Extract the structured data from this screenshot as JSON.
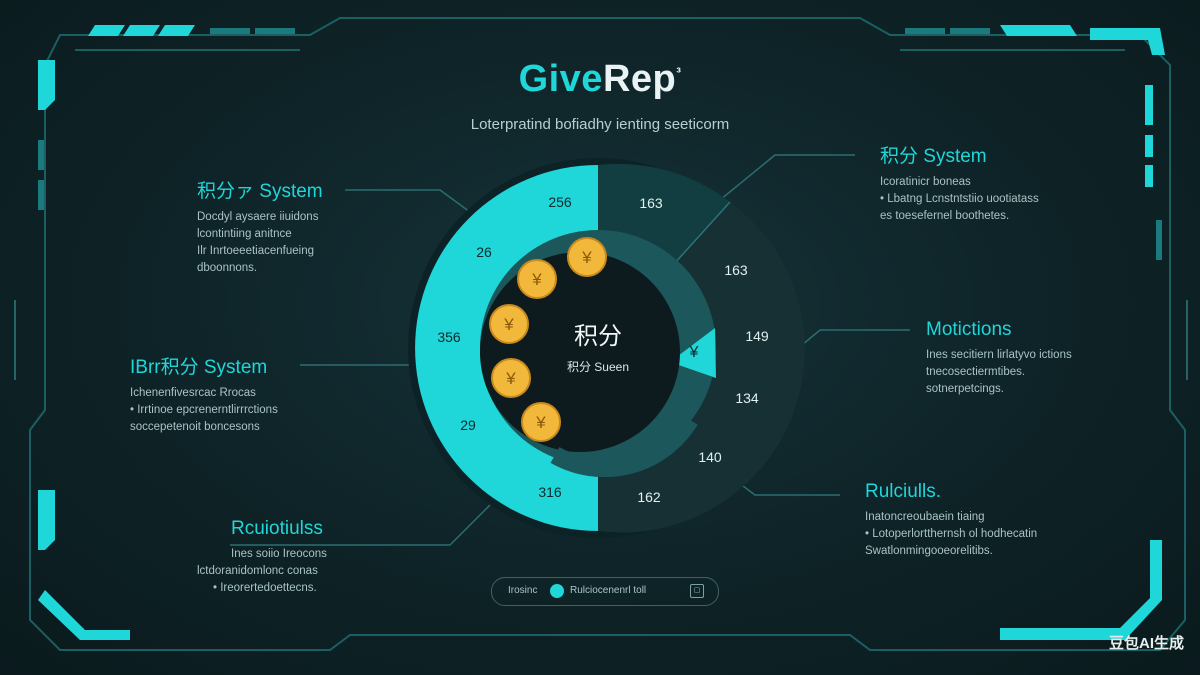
{
  "header": {
    "title_part1": "Give",
    "title_part2": "Rep",
    "title_mark": "³",
    "subtitle": "Loterpratind bofiadhy ienting seeticorm"
  },
  "center": {
    "main": "积分",
    "sub": "积分 Sueen"
  },
  "donut": {
    "left_labels": [
      "256",
      "26",
      "356",
      "29",
      "316"
    ],
    "right_labels": [
      "163",
      "163",
      "149",
      "134",
      "140",
      "162"
    ],
    "yen_symbol": "¥"
  },
  "left_blocks": [
    {
      "title": "积分ァ System",
      "lines": [
        "Docdyl aysaere iiuidons",
        "lcontintiing anitnce",
        "Ilr Inrtoeeetiacenfueing",
        "dboonnons."
      ]
    },
    {
      "title": "IBrr积分 System",
      "lines": [
        "Ichenenfivesrcac Rrocas",
        "•  Irrtinoe epcrenerntlirrrctions",
        "soccepetenoit boncesons"
      ]
    },
    {
      "title": "Rcuiotiulss",
      "lines": [
        "Ines soiio Ireocons",
        "lctdoranidomlonc conas",
        "•  Ireorertedoettecns."
      ]
    }
  ],
  "right_blocks": [
    {
      "title": "积分 System",
      "lines": [
        "Icoratinicr boneas",
        "•  Lbatng Lcnstntstiio uootiatass",
        "es toesefernel boothetes."
      ]
    },
    {
      "title": "Motictions",
      "lines": [
        "Ines secitiern lirlatyvo ictions",
        "tnecosectiermtibes.",
        "sotnerpetcings."
      ]
    },
    {
      "title": "Rulciulls.",
      "lines": [
        "Inatoncreoubaein tiaing",
        "•  Lotoperlortthernsh ol hodhecatin",
        "Swatlonmingooeorelitibs."
      ]
    }
  ],
  "pill": {
    "left_text": "Irosinc",
    "right_text": "Rulciocenenrl toll"
  },
  "watermark": "豆包AI生成",
  "colors": {
    "accent": "#1fd6d9",
    "dark_segment": "#12363a",
    "mid_segment": "#1f5d60",
    "background": "#0e1f23",
    "coin": "#f2b83b"
  }
}
